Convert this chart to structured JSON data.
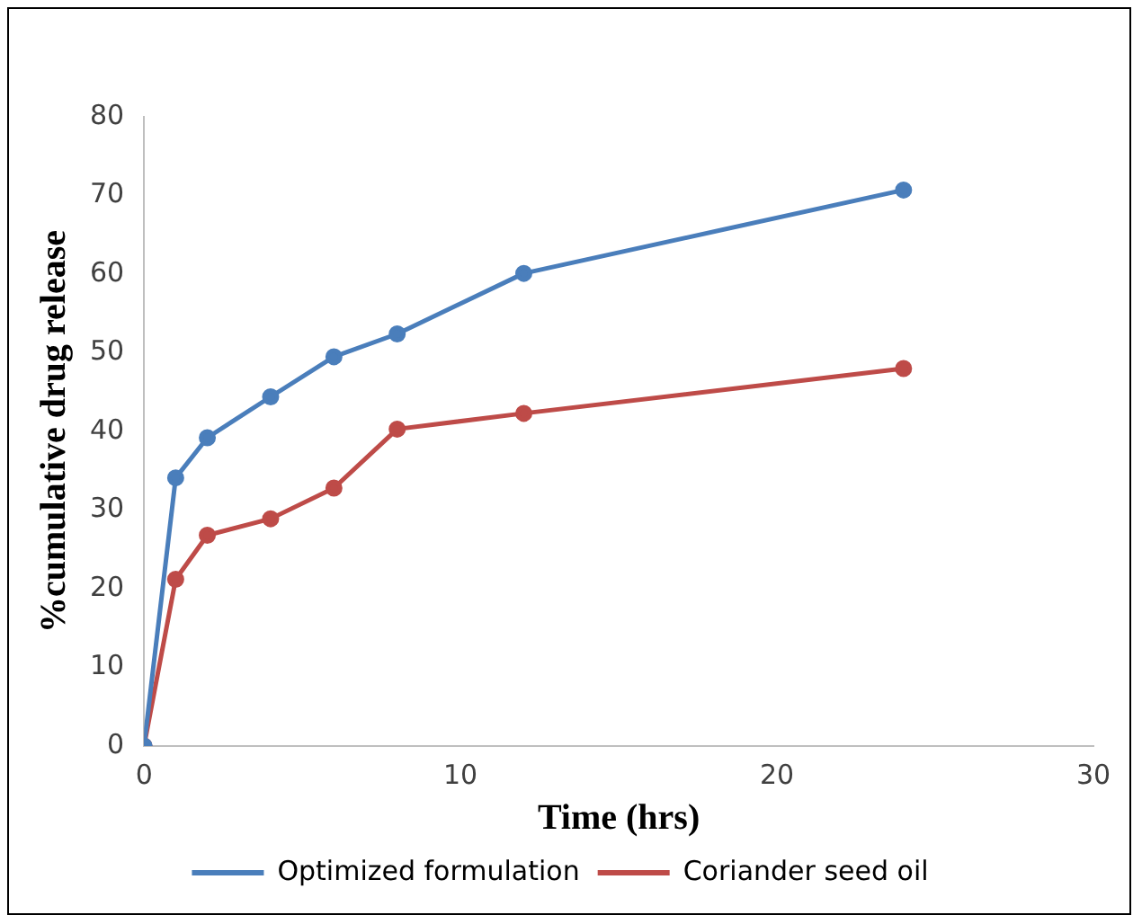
{
  "chart_data": {
    "type": "line",
    "xlabel": "Time (hrs)",
    "ylabel": "%cumulative drug release",
    "xlim": [
      0,
      30
    ],
    "xticks": [
      0,
      10,
      20,
      30
    ],
    "ylim": [
      0,
      80
    ],
    "yticks": [
      0,
      10,
      20,
      30,
      40,
      50,
      60,
      70,
      80
    ],
    "x": [
      0,
      1,
      2,
      4,
      6,
      8,
      12,
      24
    ],
    "series": [
      {
        "name": "Optimized formulation",
        "color": "#4a7ebb",
        "values": [
          0,
          34.1,
          39.2,
          44.4,
          49.5,
          52.4,
          60.1,
          70.7
        ]
      },
      {
        "name": "Coriander seed oil",
        "color": "#be4b48",
        "values": [
          0,
          21.2,
          26.8,
          28.9,
          32.8,
          40.3,
          42.3,
          48
        ]
      }
    ],
    "grid": false,
    "legend": "bottom",
    "marker": "circle",
    "line_style": "solid"
  }
}
